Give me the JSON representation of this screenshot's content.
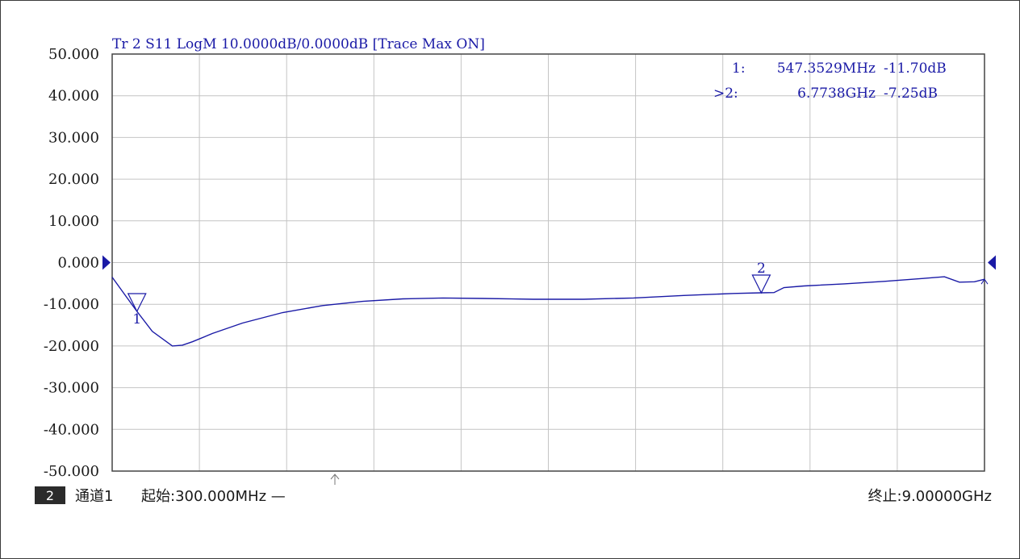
{
  "colors": {
    "trace": "#1a1aa6",
    "grid": "#c4c4c4",
    "plot_border": "#444444",
    "text": "#1a1a1a",
    "badge_bg": "#2b2b2b"
  },
  "header": {
    "trace_info": "Tr 2  S11 LogM 10.0000dB/0.0000dB  [Trace Max ON]"
  },
  "markers": [
    {
      "id": "1",
      "label": "1",
      "readout_prefix": "1:",
      "freq": "547.3529MHz",
      "value": "-11.70dB",
      "active": false
    },
    {
      "id": "2",
      "label": "2",
      "readout_prefix": ">2:",
      "freq": "6.7738GHz",
      "value": "-7.25dB",
      "active": true
    }
  ],
  "footer": {
    "channel_badge": "2",
    "channel_label": "通道1",
    "start_label": "起始:300.000MHz —",
    "stop_label": "终止:9.00000GHz"
  },
  "chart_data": {
    "type": "line",
    "title": "",
    "xlabel": "",
    "ylabel": "",
    "x_start_GHz": 0.3,
    "x_stop_GHz": 9.0,
    "ylim": [
      -50,
      50
    ],
    "y_ticks": [
      "50.000",
      "40.000",
      "30.000",
      "20.000",
      "10.000",
      "0.000",
      "-10.000",
      "-20.000",
      "-30.000",
      "-40.000",
      "-50.000"
    ],
    "x_divisions": 10,
    "grid": true,
    "reference_level_dB": 0,
    "series": [
      {
        "x_GHz": [
          0.3,
          0.45,
          0.547,
          0.7,
          0.9,
          1.0,
          1.1,
          1.3,
          1.6,
          2.0,
          2.4,
          2.8,
          3.2,
          3.6,
          4.0,
          4.5,
          5.0,
          5.5,
          6.0,
          6.5,
          6.77,
          6.9,
          7.0,
          7.2,
          7.6,
          8.0,
          8.4,
          8.6,
          8.75,
          8.9,
          9.0
        ],
        "y_dB": [
          -3.5,
          -8.5,
          -11.7,
          -16.5,
          -20.0,
          -19.8,
          -19.0,
          -17.0,
          -14.5,
          -12.0,
          -10.3,
          -9.3,
          -8.7,
          -8.5,
          -8.6,
          -8.8,
          -8.8,
          -8.5,
          -7.9,
          -7.4,
          -7.25,
          -7.2,
          -6.0,
          -5.6,
          -5.1,
          -4.5,
          -3.8,
          -3.4,
          -4.7,
          -4.6,
          -4.0
        ]
      }
    ],
    "markers": [
      {
        "id": "1",
        "x_GHz": 0.5473529,
        "y_dB": -11.7
      },
      {
        "id": "2",
        "x_GHz": 6.7738,
        "y_dB": -7.25
      }
    ]
  }
}
